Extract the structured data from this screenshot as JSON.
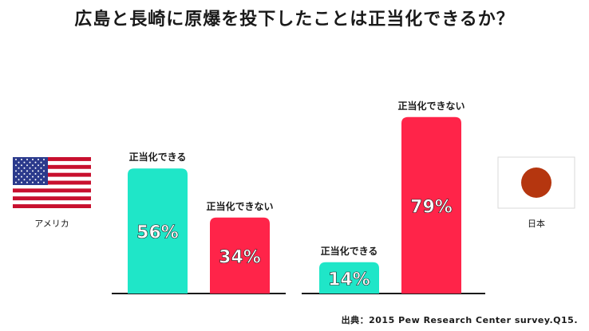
{
  "title": "広島と長崎に原爆を投下したことは正当化できるか？",
  "source": "出典：2015 Pew Research Center survey.Q15.",
  "colors": {
    "justified": "#1fe6c8",
    "not_justified": "#ff2449",
    "axis": "#1a1a1a",
    "japan_sun": "#b5360f"
  },
  "chart_data": [
    {
      "type": "bar",
      "country": "アメリカ",
      "flag_icon": "us-flag-icon",
      "categories": [
        "正当化できる",
        "正当化できない"
      ],
      "values": [
        56,
        34
      ],
      "value_labels": [
        "56%",
        "34%"
      ],
      "ylim": [
        0,
        100
      ]
    },
    {
      "type": "bar",
      "country": "日本",
      "flag_icon": "japan-flag-icon",
      "categories": [
        "正当化できる",
        "正当化できない"
      ],
      "values": [
        14,
        79
      ],
      "value_labels": [
        "14%",
        "79%"
      ],
      "ylim": [
        0,
        100
      ]
    }
  ]
}
